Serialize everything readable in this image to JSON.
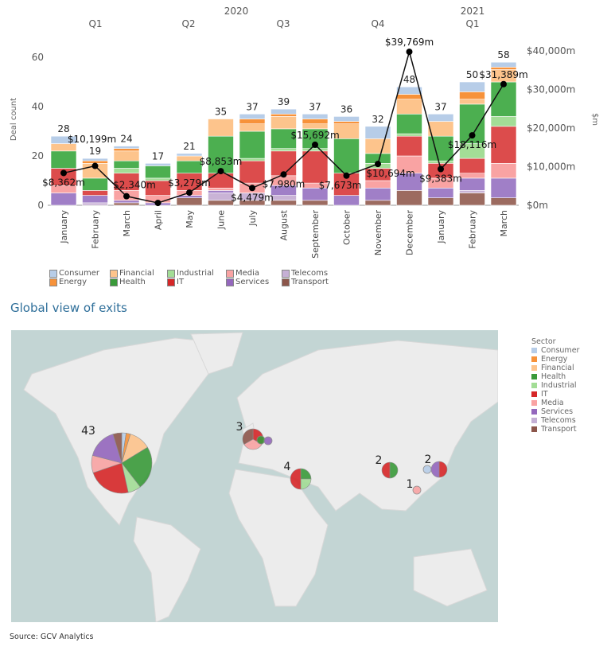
{
  "chart_data": [
    {
      "type": "bar+line",
      "stacked": true,
      "years": [
        {
          "label": "2020"
        },
        {
          "label": "2021"
        }
      ],
      "quarters": [
        "Q1",
        "Q2",
        "Q3",
        "Q4",
        "Q1"
      ],
      "categories": [
        "January",
        "February",
        "March",
        "April",
        "May",
        "June",
        "July",
        "August",
        "September",
        "October",
        "November",
        "December",
        "January",
        "February",
        "March"
      ],
      "ylabel": "Deal count",
      "ylabel_right": "$m",
      "ylim": [
        0,
        60
      ],
      "yticks": [
        "0",
        "20",
        "40",
        "60"
      ],
      "ylim_right": [
        0,
        40000
      ],
      "yticks_right": [
        "$0m",
        "$10,000m",
        "$20,000m",
        "$30,000m",
        "$40,000m"
      ],
      "totals": [
        28,
        19,
        24,
        17,
        21,
        35,
        37,
        39,
        37,
        36,
        32,
        48,
        37,
        50,
        58
      ],
      "series": [
        {
          "name": "Transport",
          "color": "#9c6b60",
          "values": [
            0,
            0,
            1,
            0,
            3,
            2,
            2,
            2,
            2,
            0,
            2,
            6,
            3,
            5,
            3
          ]
        },
        {
          "name": "Telecoms",
          "color": "#c9b3d6",
          "values": [
            0,
            1,
            0,
            0,
            0,
            3,
            3,
            2,
            0,
            0,
            0,
            0,
            0,
            1,
            0
          ]
        },
        {
          "name": "Services",
          "color": "#a07fc7",
          "values": [
            5,
            3,
            1,
            1,
            1,
            1,
            0,
            4,
            5,
            4,
            5,
            7,
            4,
            5,
            8
          ]
        },
        {
          "name": "Media",
          "color": "#f9a3a3",
          "values": [
            3,
            0,
            4,
            3,
            2,
            1,
            4,
            4,
            2,
            0,
            3,
            7,
            4,
            2,
            6
          ]
        },
        {
          "name": "IT",
          "color": "#dc4c4c",
          "values": [
            7,
            2,
            7,
            6,
            7,
            6,
            9,
            10,
            13,
            9,
            5,
            8,
            6,
            6,
            15
          ]
        },
        {
          "name": "Industrial",
          "color": "#a3dd96",
          "values": [
            0,
            0,
            2,
            1,
            0,
            0,
            1,
            1,
            1,
            0,
            2,
            1,
            1,
            6,
            4
          ]
        },
        {
          "name": "Health",
          "color": "#4caf50",
          "values": [
            7,
            5,
            3,
            5,
            5,
            15,
            11,
            8,
            8,
            14,
            4,
            8,
            10,
            16,
            14
          ]
        },
        {
          "name": "Financial",
          "color": "#fdc48c",
          "values": [
            3,
            6,
            4,
            0,
            2,
            7,
            3,
            5,
            2,
            6,
            6,
            6,
            6,
            2,
            5
          ]
        },
        {
          "name": "Energy",
          "color": "#f7923a",
          "values": [
            0,
            1,
            1,
            0,
            0,
            0,
            2,
            1,
            2,
            1,
            0,
            2,
            0,
            3,
            1
          ]
        },
        {
          "name": "Consumer",
          "color": "#b7cde8",
          "values": [
            3,
            1,
            1,
            1,
            1,
            0,
            2,
            2,
            2,
            2,
            5,
            3,
            3,
            4,
            2
          ]
        }
      ],
      "line": {
        "name": "$m",
        "values": [
          8362,
          10199,
          2340,
          600,
          3279,
          8853,
          4479,
          7980,
          15692,
          7673,
          10694,
          39769,
          9383,
          18116,
          31389
        ],
        "labels": [
          "$8,362m",
          "$10,199m",
          "$2,340m",
          "",
          "$3,279m",
          "$8,853m",
          "$4,479m",
          "$7,980m",
          "$15,692m",
          "$7,673m",
          "$10,694m",
          "$39,769m",
          "$9,383m",
          "$18,116m",
          "$31,389m"
        ]
      },
      "legend": [
        "Consumer",
        "Energy",
        "Financial",
        "Health",
        "Industrial",
        "IT",
        "Media",
        "Services",
        "Telecoms",
        "Transport"
      ]
    },
    {
      "type": "map-pie",
      "title": "Global view of exits",
      "legend_title": "Sector",
      "locations": [
        {
          "region": "North America",
          "label": "43",
          "slices": {
            "Consumer": 1,
            "Energy": 1,
            "Financial": 5,
            "Health": 10,
            "Industrial": 3,
            "IT": 10,
            "Media": 4,
            "Services": 7,
            "Transport": 2
          }
        },
        {
          "region": "United Kingdom",
          "label": "3",
          "slices": {
            "IT": 1,
            "Media": 1,
            "Transport": 1
          }
        },
        {
          "region": "Netherlands",
          "label": "",
          "slices": {
            "Health": 1
          }
        },
        {
          "region": "Germany",
          "label": "",
          "slices": {
            "Services": 1
          }
        },
        {
          "region": "Israel",
          "label": "4",
          "slices": {
            "Health": 1,
            "Industrial": 1,
            "IT": 2
          }
        },
        {
          "region": "China",
          "label": "2",
          "slices": {
            "Health": 1,
            "IT": 1
          }
        },
        {
          "region": "South Korea",
          "label": "",
          "slices": {
            "Consumer": 1
          }
        },
        {
          "region": "Japan",
          "label": "2",
          "slices": {
            "IT": 1,
            "Services": 1
          }
        },
        {
          "region": "Taiwan",
          "label": "1",
          "slices": {
            "Media": 1
          }
        }
      ]
    }
  ],
  "legend_colors": {
    "Consumer": "#b7cde8",
    "Energy": "#f7923a",
    "Financial": "#fdc48c",
    "Health": "#3a9a3a",
    "Industrial": "#a3dd96",
    "IT": "#d62728",
    "Media": "#f9a3a3",
    "Services": "#9467bd",
    "Telecoms": "#c5b0d5",
    "Transport": "#8c564b"
  },
  "map_title": "Global view of exits",
  "source": "Source: GCV Analytics"
}
